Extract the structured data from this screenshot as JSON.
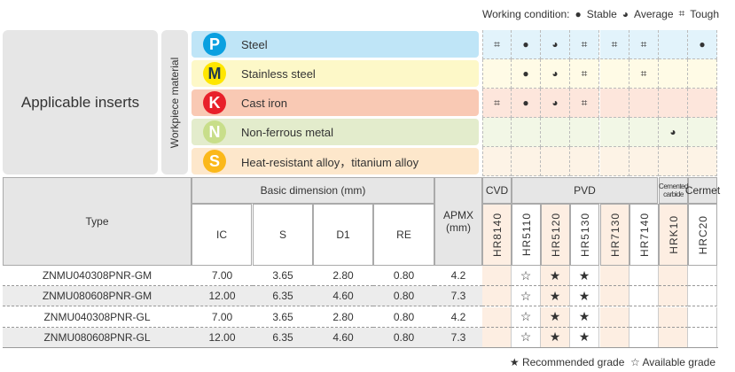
{
  "legend": {
    "label": "Working condition:",
    "stable": "Stable",
    "average": "Average",
    "tough": "Tough"
  },
  "applicable": "Applicable inserts",
  "workpiece_label": "Workpiece material",
  "materials": [
    {
      "code": "P",
      "name": "Steel",
      "color": "#0aa0e0",
      "bg": "#bfe5f7",
      "grid_bg": "#e2f3fb",
      "text": "#fff"
    },
    {
      "code": "M",
      "name": "Stainless steel",
      "color": "#ffe600",
      "bg": "#fdf8c8",
      "grid_bg": "#fffbe6",
      "text": "#1f3b4d"
    },
    {
      "code": "K",
      "name": "Cast iron",
      "color": "#e8202a",
      "bg": "#f9c9b4",
      "grid_bg": "#fde6dc",
      "text": "#fff"
    },
    {
      "code": "N",
      "name": "Non-ferrous metal",
      "color": "#c8de8a",
      "bg": "#e3eccc",
      "grid_bg": "#f2f7e6",
      "text": "#fff"
    },
    {
      "code": "S",
      "name": "Heat-resistant alloy，titanium alloy",
      "color": "#fbb81a",
      "bg": "#fde7cb",
      "grid_bg": "#fdf3e6",
      "text": "#fff"
    }
  ],
  "conditions": [
    [
      "tough",
      "stable",
      "average",
      "tough",
      "tough",
      "tough",
      "",
      "stable"
    ],
    [
      "",
      "stable",
      "average",
      "tough",
      "",
      "tough",
      "",
      ""
    ],
    [
      "tough",
      "stable",
      "average",
      "tough",
      "",
      "",
      "",
      ""
    ],
    [
      "",
      "",
      "",
      "",
      "",
      "",
      "average",
      ""
    ],
    [
      "",
      "",
      "",
      "",
      "",
      "",
      "",
      ""
    ]
  ],
  "table": {
    "type_header": "Type",
    "basic_header": "Basic dimension (mm)",
    "dims": [
      "IC",
      "S",
      "D1",
      "RE"
    ],
    "apmx": "APMX",
    "apmx_unit": "(mm)",
    "groups": [
      {
        "label": "CVD",
        "span": 1
      },
      {
        "label": "PVD",
        "span": 5
      },
      {
        "label": "Cemented carbide",
        "span": 1
      },
      {
        "label": "Cermet",
        "span": 1
      }
    ],
    "grades": [
      "HR8140",
      "HR5110",
      "HR5120",
      "HR5130",
      "HR7130",
      "HR7140",
      "HRK10",
      "HRC20"
    ],
    "rows": [
      {
        "type": "ZNMU040308PNR-GM",
        "ic": "7.00",
        "s": "3.65",
        "d1": "2.80",
        "re": "0.80",
        "apmx": "4.2",
        "marks": [
          "",
          "☆",
          "★",
          "★",
          "",
          "",
          "",
          ""
        ]
      },
      {
        "type": "ZNMU080608PNR-GM",
        "ic": "12.00",
        "s": "6.35",
        "d1": "4.60",
        "re": "0.80",
        "apmx": "7.3",
        "marks": [
          "",
          "☆",
          "★",
          "★",
          "",
          "",
          "",
          ""
        ]
      },
      {
        "type": "ZNMU040308PNR-GL",
        "ic": "7.00",
        "s": "3.65",
        "d1": "2.80",
        "re": "0.80",
        "apmx": "4.2",
        "marks": [
          "",
          "☆",
          "★",
          "★",
          "",
          "",
          "",
          ""
        ]
      },
      {
        "type": "ZNMU080608PNR-GL",
        "ic": "12.00",
        "s": "6.35",
        "d1": "4.60",
        "re": "0.80",
        "apmx": "7.3",
        "marks": [
          "",
          "☆",
          "★",
          "★",
          "",
          "",
          "",
          ""
        ]
      }
    ]
  },
  "footer": {
    "recommended": "Recommended grade",
    "available": "Available grade"
  }
}
